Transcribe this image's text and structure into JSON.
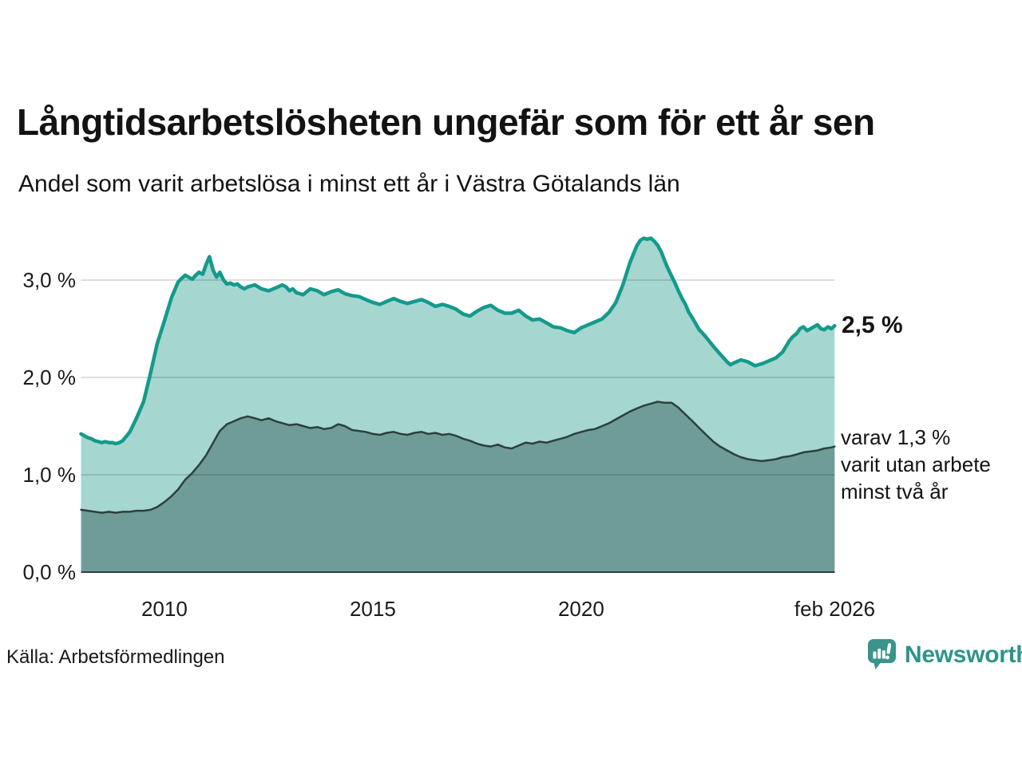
{
  "title": "Långtidsarbetslösheten ungefär som för ett år sen",
  "subtitle": "Andel som varit arbetslösa i minst ett år i Västra Götalands län",
  "source": "Källa: Arbetsförmedlingen",
  "brand": {
    "name": "Newsworthy",
    "color": "#3a948b"
  },
  "annotations": {
    "total_label": "2,5 %",
    "subset_lines": [
      "varav 1,3 %",
      "varit utan arbete",
      "minst två år"
    ]
  },
  "chart_data": {
    "type": "area",
    "title": "Långtidsarbetslösheten ungefär som för ett år sen",
    "subtitle": "Andel som varit arbetslösa i minst ett år i Västra Götalands län",
    "unit": "%",
    "grid": true,
    "grid_color": "#d9d9d9",
    "baseline_color": "#2c403e",
    "x_range": [
      2008.0,
      2026.083
    ],
    "y_range": [
      0,
      3.5
    ],
    "x_ticks": [
      {
        "year": 2010,
        "label": "2010"
      },
      {
        "year": 2015,
        "label": "2015"
      },
      {
        "year": 2020,
        "label": "2020"
      },
      {
        "year": 2026.083,
        "label": "feb 2026"
      }
    ],
    "y_ticks": [
      {
        "value": 0,
        "label": "0,0 %"
      },
      {
        "value": 1,
        "label": "1,0 %"
      },
      {
        "value": 2,
        "label": "2,0 %"
      },
      {
        "value": 3,
        "label": "3,0 %"
      }
    ],
    "series": [
      {
        "id": "total",
        "name": "Andel som varit arbetslösa i minst ett år",
        "end_label": "2,5 %",
        "end_value": 2.5,
        "fill": "#a5d6d0",
        "line": "#149a8c",
        "line_width": 4.5,
        "points": [
          [
            2008.0,
            1.42
          ],
          [
            2008.08,
            1.4
          ],
          [
            2008.17,
            1.38
          ],
          [
            2008.25,
            1.37
          ],
          [
            2008.33,
            1.35
          ],
          [
            2008.42,
            1.34
          ],
          [
            2008.5,
            1.33
          ],
          [
            2008.58,
            1.34
          ],
          [
            2008.67,
            1.33
          ],
          [
            2008.75,
            1.33
          ],
          [
            2008.83,
            1.32
          ],
          [
            2008.92,
            1.33
          ],
          [
            2009.0,
            1.35
          ],
          [
            2009.17,
            1.44
          ],
          [
            2009.33,
            1.58
          ],
          [
            2009.5,
            1.75
          ],
          [
            2009.67,
            2.05
          ],
          [
            2009.83,
            2.35
          ],
          [
            2010.0,
            2.58
          ],
          [
            2010.17,
            2.82
          ],
          [
            2010.33,
            2.98
          ],
          [
            2010.42,
            3.02
          ],
          [
            2010.5,
            3.05
          ],
          [
            2010.58,
            3.03
          ],
          [
            2010.67,
            3.01
          ],
          [
            2010.75,
            3.05
          ],
          [
            2010.83,
            3.08
          ],
          [
            2010.92,
            3.06
          ],
          [
            2011.0,
            3.16
          ],
          [
            2011.08,
            3.24
          ],
          [
            2011.17,
            3.1
          ],
          [
            2011.25,
            3.03
          ],
          [
            2011.33,
            3.08
          ],
          [
            2011.42,
            3.0
          ],
          [
            2011.5,
            2.96
          ],
          [
            2011.58,
            2.97
          ],
          [
            2011.67,
            2.95
          ],
          [
            2011.75,
            2.96
          ],
          [
            2011.83,
            2.93
          ],
          [
            2011.92,
            2.91
          ],
          [
            2012.0,
            2.93
          ],
          [
            2012.17,
            2.95
          ],
          [
            2012.33,
            2.91
          ],
          [
            2012.5,
            2.89
          ],
          [
            2012.67,
            2.92
          ],
          [
            2012.83,
            2.95
          ],
          [
            2012.92,
            2.93
          ],
          [
            2013.0,
            2.89
          ],
          [
            2013.08,
            2.91
          ],
          [
            2013.17,
            2.87
          ],
          [
            2013.33,
            2.85
          ],
          [
            2013.5,
            2.91
          ],
          [
            2013.67,
            2.89
          ],
          [
            2013.83,
            2.85
          ],
          [
            2014.0,
            2.88
          ],
          [
            2014.17,
            2.9
          ],
          [
            2014.33,
            2.86
          ],
          [
            2014.5,
            2.84
          ],
          [
            2014.67,
            2.83
          ],
          [
            2014.83,
            2.8
          ],
          [
            2015.0,
            2.77
          ],
          [
            2015.17,
            2.75
          ],
          [
            2015.33,
            2.78
          ],
          [
            2015.5,
            2.81
          ],
          [
            2015.67,
            2.78
          ],
          [
            2015.83,
            2.76
          ],
          [
            2016.0,
            2.78
          ],
          [
            2016.17,
            2.8
          ],
          [
            2016.33,
            2.77
          ],
          [
            2016.5,
            2.73
          ],
          [
            2016.67,
            2.75
          ],
          [
            2016.83,
            2.73
          ],
          [
            2017.0,
            2.7
          ],
          [
            2017.17,
            2.65
          ],
          [
            2017.33,
            2.63
          ],
          [
            2017.5,
            2.68
          ],
          [
            2017.67,
            2.72
          ],
          [
            2017.83,
            2.74
          ],
          [
            2018.0,
            2.69
          ],
          [
            2018.17,
            2.66
          ],
          [
            2018.33,
            2.66
          ],
          [
            2018.5,
            2.69
          ],
          [
            2018.67,
            2.63
          ],
          [
            2018.83,
            2.59
          ],
          [
            2019.0,
            2.6
          ],
          [
            2019.17,
            2.56
          ],
          [
            2019.33,
            2.52
          ],
          [
            2019.5,
            2.51
          ],
          [
            2019.67,
            2.48
          ],
          [
            2019.83,
            2.46
          ],
          [
            2020.0,
            2.51
          ],
          [
            2020.17,
            2.54
          ],
          [
            2020.33,
            2.57
          ],
          [
            2020.5,
            2.6
          ],
          [
            2020.67,
            2.67
          ],
          [
            2020.83,
            2.77
          ],
          [
            2021.0,
            2.95
          ],
          [
            2021.17,
            3.18
          ],
          [
            2021.33,
            3.35
          ],
          [
            2021.42,
            3.41
          ],
          [
            2021.5,
            3.43
          ],
          [
            2021.58,
            3.42
          ],
          [
            2021.67,
            3.43
          ],
          [
            2021.75,
            3.4
          ],
          [
            2021.83,
            3.36
          ],
          [
            2021.92,
            3.29
          ],
          [
            2022.0,
            3.2
          ],
          [
            2022.08,
            3.12
          ],
          [
            2022.17,
            3.04
          ],
          [
            2022.25,
            2.97
          ],
          [
            2022.33,
            2.89
          ],
          [
            2022.42,
            2.81
          ],
          [
            2022.5,
            2.75
          ],
          [
            2022.58,
            2.67
          ],
          [
            2022.67,
            2.61
          ],
          [
            2022.75,
            2.55
          ],
          [
            2022.83,
            2.49
          ],
          [
            2022.92,
            2.45
          ],
          [
            2023.0,
            2.41
          ],
          [
            2023.17,
            2.32
          ],
          [
            2023.33,
            2.24
          ],
          [
            2023.5,
            2.16
          ],
          [
            2023.58,
            2.13
          ],
          [
            2023.67,
            2.15
          ],
          [
            2023.83,
            2.18
          ],
          [
            2024.0,
            2.16
          ],
          [
            2024.17,
            2.12
          ],
          [
            2024.33,
            2.14
          ],
          [
            2024.5,
            2.17
          ],
          [
            2024.67,
            2.2
          ],
          [
            2024.83,
            2.26
          ],
          [
            2025.0,
            2.38
          ],
          [
            2025.08,
            2.42
          ],
          [
            2025.17,
            2.45
          ],
          [
            2025.25,
            2.5
          ],
          [
            2025.33,
            2.52
          ],
          [
            2025.42,
            2.48
          ],
          [
            2025.5,
            2.5
          ],
          [
            2025.58,
            2.52
          ],
          [
            2025.67,
            2.54
          ],
          [
            2025.75,
            2.5
          ],
          [
            2025.83,
            2.49
          ],
          [
            2025.92,
            2.52
          ],
          [
            2026.0,
            2.5
          ],
          [
            2026.08,
            2.53
          ]
        ]
      },
      {
        "id": "subset",
        "name": "varav utan arbete minst två år",
        "end_label": "varav 1,3 % varit utan arbete minst två år",
        "end_value": 1.3,
        "fill": "#6f9c98",
        "line": "#2c403e",
        "line_width": 2.5,
        "points": [
          [
            2008.0,
            0.64
          ],
          [
            2008.17,
            0.63
          ],
          [
            2008.33,
            0.62
          ],
          [
            2008.5,
            0.61
          ],
          [
            2008.67,
            0.62
          ],
          [
            2008.83,
            0.61
          ],
          [
            2009.0,
            0.62
          ],
          [
            2009.17,
            0.62
          ],
          [
            2009.33,
            0.63
          ],
          [
            2009.5,
            0.63
          ],
          [
            2009.67,
            0.64
          ],
          [
            2009.83,
            0.67
          ],
          [
            2010.0,
            0.72
          ],
          [
            2010.17,
            0.78
          ],
          [
            2010.33,
            0.85
          ],
          [
            2010.5,
            0.95
          ],
          [
            2010.67,
            1.02
          ],
          [
            2010.83,
            1.1
          ],
          [
            2011.0,
            1.2
          ],
          [
            2011.17,
            1.33
          ],
          [
            2011.33,
            1.45
          ],
          [
            2011.5,
            1.52
          ],
          [
            2011.67,
            1.55
          ],
          [
            2011.83,
            1.58
          ],
          [
            2012.0,
            1.6
          ],
          [
            2012.17,
            1.58
          ],
          [
            2012.33,
            1.56
          ],
          [
            2012.5,
            1.58
          ],
          [
            2012.67,
            1.55
          ],
          [
            2012.83,
            1.53
          ],
          [
            2013.0,
            1.51
          ],
          [
            2013.17,
            1.52
          ],
          [
            2013.33,
            1.5
          ],
          [
            2013.5,
            1.48
          ],
          [
            2013.67,
            1.49
          ],
          [
            2013.83,
            1.47
          ],
          [
            2014.0,
            1.48
          ],
          [
            2014.17,
            1.52
          ],
          [
            2014.33,
            1.5
          ],
          [
            2014.5,
            1.46
          ],
          [
            2014.67,
            1.45
          ],
          [
            2014.83,
            1.44
          ],
          [
            2015.0,
            1.42
          ],
          [
            2015.17,
            1.41
          ],
          [
            2015.33,
            1.43
          ],
          [
            2015.5,
            1.44
          ],
          [
            2015.67,
            1.42
          ],
          [
            2015.83,
            1.41
          ],
          [
            2016.0,
            1.43
          ],
          [
            2016.17,
            1.44
          ],
          [
            2016.33,
            1.42
          ],
          [
            2016.5,
            1.43
          ],
          [
            2016.67,
            1.41
          ],
          [
            2016.83,
            1.42
          ],
          [
            2017.0,
            1.4
          ],
          [
            2017.17,
            1.37
          ],
          [
            2017.33,
            1.35
          ],
          [
            2017.5,
            1.32
          ],
          [
            2017.67,
            1.3
          ],
          [
            2017.83,
            1.29
          ],
          [
            2018.0,
            1.31
          ],
          [
            2018.17,
            1.28
          ],
          [
            2018.33,
            1.27
          ],
          [
            2018.5,
            1.3
          ],
          [
            2018.67,
            1.33
          ],
          [
            2018.83,
            1.32
          ],
          [
            2019.0,
            1.34
          ],
          [
            2019.17,
            1.33
          ],
          [
            2019.33,
            1.35
          ],
          [
            2019.5,
            1.37
          ],
          [
            2019.67,
            1.39
          ],
          [
            2019.83,
            1.42
          ],
          [
            2020.0,
            1.44
          ],
          [
            2020.17,
            1.46
          ],
          [
            2020.33,
            1.47
          ],
          [
            2020.5,
            1.5
          ],
          [
            2020.67,
            1.53
          ],
          [
            2020.83,
            1.57
          ],
          [
            2021.0,
            1.61
          ],
          [
            2021.17,
            1.65
          ],
          [
            2021.33,
            1.68
          ],
          [
            2021.5,
            1.71
          ],
          [
            2021.67,
            1.73
          ],
          [
            2021.83,
            1.75
          ],
          [
            2022.0,
            1.74
          ],
          [
            2022.17,
            1.74
          ],
          [
            2022.33,
            1.69
          ],
          [
            2022.5,
            1.62
          ],
          [
            2022.67,
            1.55
          ],
          [
            2022.83,
            1.48
          ],
          [
            2023.0,
            1.41
          ],
          [
            2023.17,
            1.34
          ],
          [
            2023.33,
            1.29
          ],
          [
            2023.5,
            1.25
          ],
          [
            2023.67,
            1.21
          ],
          [
            2023.83,
            1.18
          ],
          [
            2024.0,
            1.16
          ],
          [
            2024.17,
            1.15
          ],
          [
            2024.33,
            1.14
          ],
          [
            2024.5,
            1.15
          ],
          [
            2024.67,
            1.16
          ],
          [
            2024.83,
            1.18
          ],
          [
            2025.0,
            1.19
          ],
          [
            2025.17,
            1.21
          ],
          [
            2025.33,
            1.23
          ],
          [
            2025.5,
            1.24
          ],
          [
            2025.67,
            1.25
          ],
          [
            2025.83,
            1.27
          ],
          [
            2026.0,
            1.28
          ],
          [
            2026.08,
            1.29
          ]
        ]
      }
    ]
  }
}
